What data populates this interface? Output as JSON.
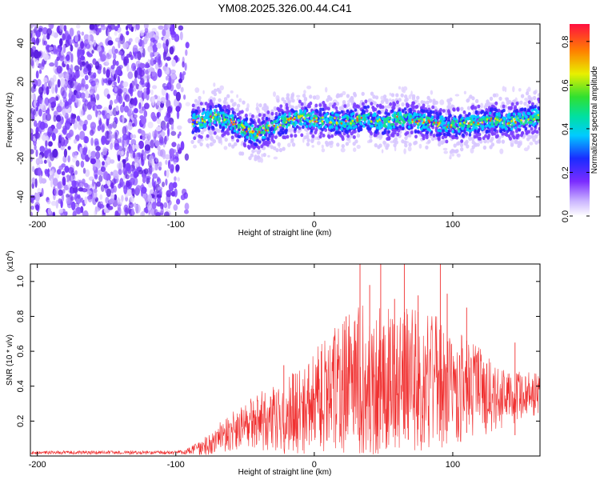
{
  "chart_data": {
    "title": "YM08.2025.326.00.44.C41",
    "spectrogram": {
      "type": "heatmap",
      "xlabel": "Height of straight line (km)",
      "ylabel": "Frequency (Hz)",
      "xlim": [
        -205,
        163
      ],
      "ylim": [
        -50,
        50
      ],
      "x_ticks": [
        -200,
        -100,
        0,
        100
      ],
      "y_ticks": [
        -40,
        -20,
        0,
        20,
        40
      ],
      "noise_region_x": [
        -205,
        -88
      ],
      "signal_region_x": [
        -88,
        163
      ],
      "signal_path": {
        "x": [
          -100,
          -90,
          -80,
          -70,
          -60,
          -50,
          -42,
          -35,
          -25,
          -18,
          -10,
          0,
          10,
          20,
          30,
          40,
          50,
          60,
          70,
          80,
          90,
          100,
          110,
          120,
          130,
          140,
          150,
          163
        ],
        "y": [
          -3,
          -1,
          0,
          2,
          -1,
          -5,
          -7,
          -5,
          -2,
          0,
          1,
          0,
          0,
          -1,
          0,
          1,
          -2,
          1,
          0,
          -1,
          -2,
          -3,
          -2,
          -1,
          0,
          -1,
          0,
          2
        ]
      },
      "colorbar": {
        "label": "Normalized spectral amplitude",
        "range": [
          0.0,
          0.88
        ],
        "ticks": [
          "0.0",
          "0.2",
          "0.4",
          "0.6",
          "0.8"
        ]
      }
    },
    "snr": {
      "type": "line",
      "xlabel": "Height of straight line (km)",
      "ylabel": "SNR (10 * v/v)",
      "scale_label": "(x10",
      "scale_exponent": "4",
      "xlim": [
        -205,
        163
      ],
      "ylim": [
        0,
        1.1
      ],
      "x_ticks": [
        -200,
        -100,
        0,
        100
      ],
      "y_ticks": [
        "0.2",
        "0.4",
        "0.6",
        "0.8",
        "1.0"
      ],
      "series": [
        {
          "name": "SNR",
          "color": "#f03030",
          "envelope": {
            "x": [
              -205,
              -100,
              -90,
              -80,
              -70,
              -60,
              -50,
              -40,
              -30,
              -20,
              -10,
              0,
              10,
              20,
              30,
              40,
              50,
              60,
              70,
              80,
              90,
              100,
              110,
              120,
              130,
              140,
              150,
              163
            ],
            "mean": [
              0.02,
              0.02,
              0.03,
              0.05,
              0.1,
              0.14,
              0.17,
              0.2,
              0.22,
              0.23,
              0.26,
              0.32,
              0.37,
              0.4,
              0.42,
              0.44,
              0.43,
              0.45,
              0.44,
              0.43,
              0.42,
              0.4,
              0.38,
              0.36,
              0.34,
              0.33,
              0.35,
              0.36
            ],
            "spread": [
              0.01,
              0.01,
              0.02,
              0.05,
              0.08,
              0.11,
              0.14,
              0.17,
              0.2,
              0.22,
              0.26,
              0.3,
              0.34,
              0.38,
              0.42,
              0.46,
              0.44,
              0.44,
              0.42,
              0.4,
              0.38,
              0.34,
              0.3,
              0.26,
              0.2,
              0.16,
              0.14,
              0.12
            ]
          },
          "peaks": [
            {
              "x": 33,
              "y": 1.1
            },
            {
              "x": 48,
              "y": 1.1
            },
            {
              "x": 65,
              "y": 1.1
            },
            {
              "x": 91,
              "y": 1.1
            },
            {
              "x": 96,
              "y": 0.93
            },
            {
              "x": 75,
              "y": 0.92
            },
            {
              "x": 58,
              "y": 0.9
            },
            {
              "x": 40,
              "y": 0.98
            },
            {
              "x": 110,
              "y": 0.85
            },
            {
              "x": 23,
              "y": 0.8
            },
            {
              "x": -22,
              "y": 0.52
            },
            {
              "x": -15,
              "y": 0.47
            },
            {
              "x": 145,
              "y": 0.65
            },
            {
              "x": 5,
              "y": 0.6
            }
          ]
        }
      ]
    }
  }
}
